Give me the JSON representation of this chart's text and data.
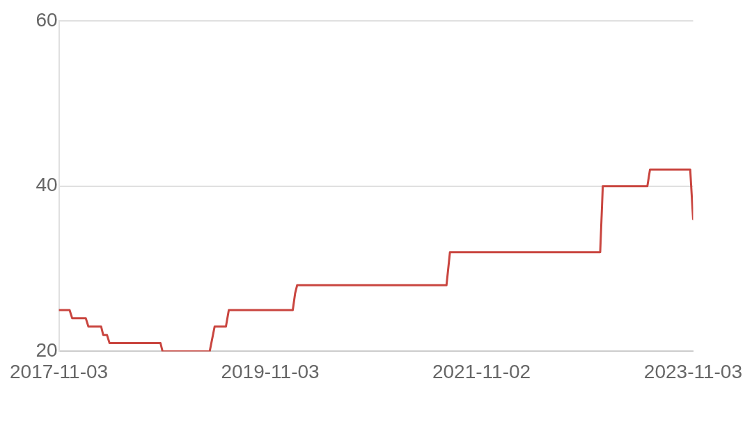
{
  "chart_data": {
    "type": "line",
    "x": [
      "2017-11-03",
      "2017-12-10",
      "2017-12-19",
      "2018-02-04",
      "2018-02-13",
      "2018-03-29",
      "2018-04-05",
      "2018-04-18",
      "2018-04-27",
      "2018-10-20",
      "2018-10-27",
      "2019-04-08",
      "2019-04-25",
      "2019-06-03",
      "2019-06-13",
      "2020-01-20",
      "2020-01-28",
      "2020-02-04",
      "2021-07-04",
      "2021-07-16",
      "2022-12-17",
      "2022-12-26",
      "2023-05-29",
      "2023-06-07",
      "2023-10-24",
      "2023-11-03"
    ],
    "series": [
      {
        "color": "#c9453f",
        "values": [
          25,
          25,
          24,
          24,
          23,
          23,
          22,
          22,
          21,
          21,
          20,
          20,
          23,
          23,
          25,
          25,
          27,
          28,
          28,
          32,
          32,
          40,
          40,
          42,
          42,
          36
        ]
      }
    ],
    "xlim": [
      "2017-11-03",
      "2023-11-03"
    ],
    "xticks": [
      "2017-11-03",
      "2019-11-03",
      "2021-11-02",
      "2023-11-03"
    ],
    "ylim": [
      20,
      60
    ],
    "yticks": [
      20,
      40,
      60
    ],
    "grid": "y",
    "marker": "none",
    "line_style": "solid"
  }
}
